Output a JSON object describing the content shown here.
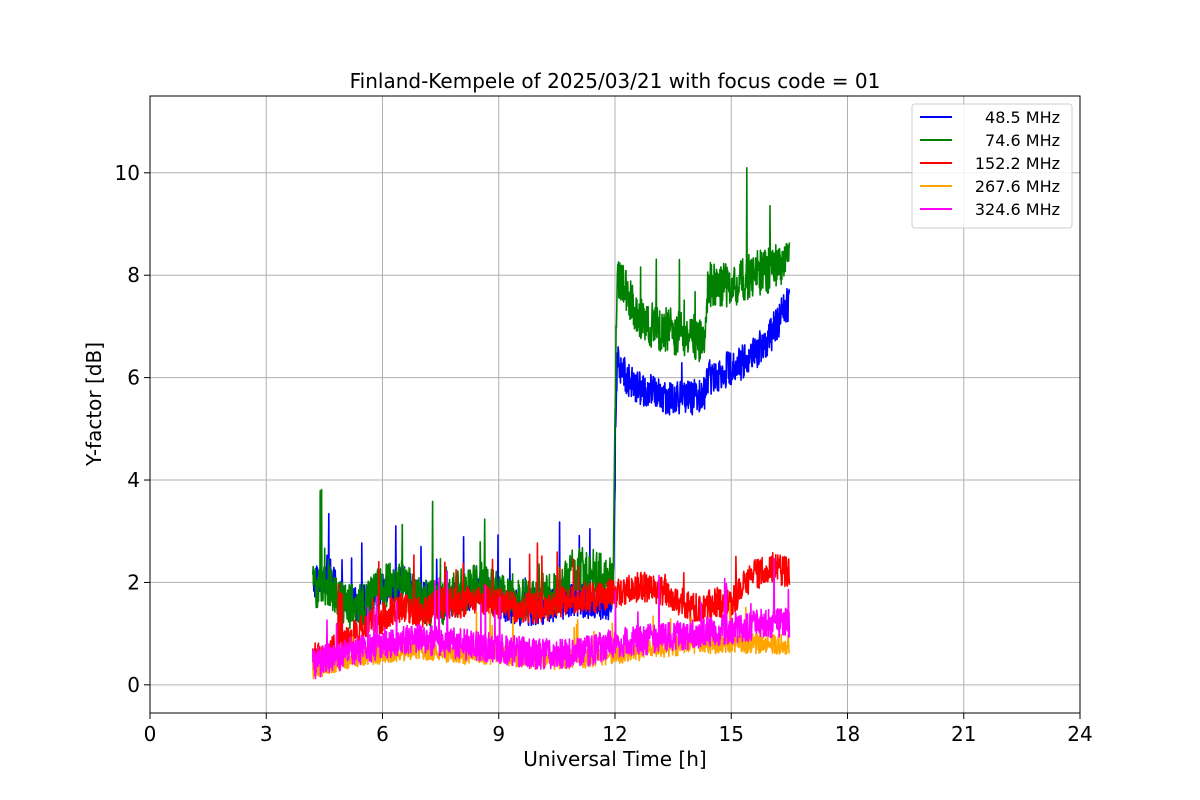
{
  "chart_data": {
    "type": "line",
    "title": "Finland-Kempele of 2025/03/21 with focus code = 01",
    "xlabel": "Universal Time [h]",
    "ylabel": "Y-factor [dB]",
    "xlim": [
      0,
      24
    ],
    "ylim": [
      -0.55,
      11.5
    ],
    "xticks": [
      0,
      3,
      6,
      9,
      12,
      15,
      18,
      21,
      24
    ],
    "yticks": [
      0,
      2,
      4,
      6,
      8,
      10
    ],
    "grid": true,
    "legend_position": "top-right",
    "series": [
      {
        "name": "48.5 MHz",
        "color": "#0000ff",
        "noise": 0.35,
        "points": [
          [
            4.2,
            2.0
          ],
          [
            4.6,
            2.2
          ],
          [
            5.0,
            1.6
          ],
          [
            5.5,
            1.6
          ],
          [
            6.0,
            1.8
          ],
          [
            6.5,
            2.0
          ],
          [
            7.0,
            1.7
          ],
          [
            7.5,
            1.6
          ],
          [
            8.0,
            1.7
          ],
          [
            8.5,
            1.9
          ],
          [
            9.0,
            1.6
          ],
          [
            9.5,
            1.5
          ],
          [
            10.0,
            1.5
          ],
          [
            10.5,
            1.6
          ],
          [
            11.0,
            1.7
          ],
          [
            11.5,
            1.6
          ],
          [
            11.95,
            1.6
          ],
          [
            12.05,
            6.3
          ],
          [
            12.5,
            5.8
          ],
          [
            13.0,
            5.7
          ],
          [
            13.5,
            5.6
          ],
          [
            14.0,
            5.6
          ],
          [
            14.3,
            5.7
          ],
          [
            14.4,
            6.0
          ],
          [
            15.0,
            6.2
          ],
          [
            15.5,
            6.4
          ],
          [
            16.0,
            6.8
          ],
          [
            16.5,
            7.5
          ]
        ]
      },
      {
        "name": "74.6 MHz",
        "color": "#008000",
        "noise": 0.45,
        "points": [
          [
            4.2,
            1.9
          ],
          [
            4.6,
            2.0
          ],
          [
            5.0,
            1.5
          ],
          [
            5.5,
            1.6
          ],
          [
            6.0,
            1.9
          ],
          [
            6.5,
            2.0
          ],
          [
            7.0,
            1.6
          ],
          [
            7.5,
            1.6
          ],
          [
            8.0,
            1.8
          ],
          [
            8.5,
            2.0
          ],
          [
            9.0,
            1.8
          ],
          [
            9.5,
            1.7
          ],
          [
            10.0,
            1.7
          ],
          [
            10.5,
            1.8
          ],
          [
            11.0,
            2.3
          ],
          [
            11.5,
            2.2
          ],
          [
            11.95,
            2.0
          ],
          [
            12.05,
            8.0
          ],
          [
            12.5,
            7.3
          ],
          [
            13.0,
            7.0
          ],
          [
            13.5,
            6.9
          ],
          [
            14.0,
            6.8
          ],
          [
            14.3,
            6.7
          ],
          [
            14.4,
            7.8
          ],
          [
            15.0,
            7.8
          ],
          [
            15.5,
            8.0
          ],
          [
            16.0,
            8.1
          ],
          [
            16.5,
            8.3
          ]
        ]
      },
      {
        "name": "152.2 MHz",
        "color": "#ff0000",
        "noise": 0.3,
        "points": [
          [
            4.2,
            0.5
          ],
          [
            4.6,
            0.6
          ],
          [
            5.0,
            0.8
          ],
          [
            5.5,
            1.1
          ],
          [
            6.0,
            1.3
          ],
          [
            6.5,
            1.5
          ],
          [
            7.0,
            1.4
          ],
          [
            7.5,
            1.6
          ],
          [
            8.0,
            1.6
          ],
          [
            8.5,
            1.7
          ],
          [
            9.0,
            1.6
          ],
          [
            9.5,
            1.5
          ],
          [
            10.0,
            1.5
          ],
          [
            10.5,
            1.6
          ],
          [
            11.0,
            1.7
          ],
          [
            11.5,
            1.7
          ],
          [
            12.0,
            1.8
          ],
          [
            12.5,
            1.9
          ],
          [
            13.0,
            1.9
          ],
          [
            13.5,
            1.7
          ],
          [
            14.0,
            1.5
          ],
          [
            14.5,
            1.6
          ],
          [
            15.0,
            1.6
          ],
          [
            15.5,
            2.1
          ],
          [
            16.0,
            2.3
          ],
          [
            16.5,
            2.2
          ]
        ]
      },
      {
        "name": "267.6 MHz",
        "color": "#ffa500",
        "noise": 0.2,
        "points": [
          [
            4.2,
            0.3
          ],
          [
            5.0,
            0.5
          ],
          [
            6.0,
            0.6
          ],
          [
            7.0,
            0.7
          ],
          [
            8.0,
            0.6
          ],
          [
            9.0,
            0.6
          ],
          [
            10.0,
            0.5
          ],
          [
            11.0,
            0.5
          ],
          [
            12.0,
            0.6
          ],
          [
            13.0,
            0.7
          ],
          [
            14.0,
            0.8
          ],
          [
            15.0,
            0.8
          ],
          [
            16.0,
            0.8
          ],
          [
            16.5,
            0.8
          ]
        ]
      },
      {
        "name": "324.6 MHz",
        "color": "#ff00ff",
        "noise": 0.3,
        "points": [
          [
            4.2,
            0.4
          ],
          [
            5.0,
            0.6
          ],
          [
            6.0,
            0.8
          ],
          [
            7.0,
            0.9
          ],
          [
            8.0,
            0.8
          ],
          [
            9.0,
            0.7
          ],
          [
            10.0,
            0.6
          ],
          [
            11.0,
            0.6
          ],
          [
            12.0,
            0.8
          ],
          [
            13.0,
            0.9
          ],
          [
            14.0,
            1.0
          ],
          [
            15.0,
            1.1
          ],
          [
            16.0,
            1.2
          ],
          [
            16.5,
            1.2
          ]
        ]
      }
    ]
  }
}
